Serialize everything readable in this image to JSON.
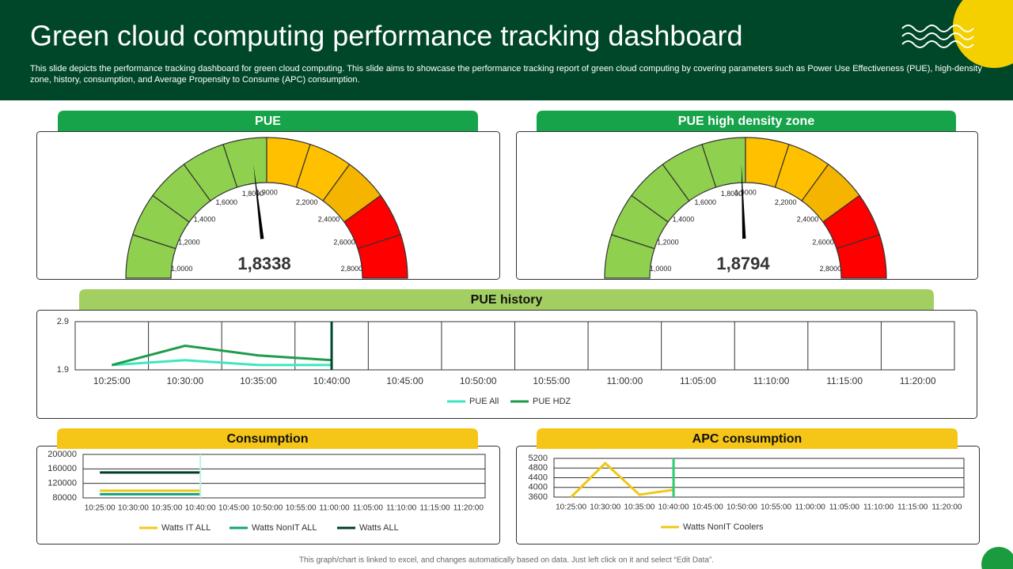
{
  "header": {
    "title": "Green cloud computing performance tracking dashboard",
    "description": "This slide depicts the performance tracking dashboard for green cloud computing. This slide aims to showcase the performance tracking report of green cloud computing by covering parameters such as Power Use Effectiveness (PUE), high-density zone, history, consumption, and Average Propensity to Consume (APC) consumption."
  },
  "chart_data": [
    {
      "type": "gauge",
      "title": "PUE",
      "value": 1.8338,
      "value_label": "1,8338",
      "lim": [
        1.0,
        2.8
      ],
      "ticks": [
        {
          "value": 1.0,
          "label": "1,0000"
        },
        {
          "value": 1.2,
          "label": "1,2000"
        },
        {
          "value": 1.4,
          "label": "1,4000"
        },
        {
          "value": 1.6,
          "label": "1,6000"
        },
        {
          "value": 1.8,
          "label": "1,8000"
        },
        {
          "value": 1.9,
          "label": "1,9000"
        },
        {
          "value": 2.2,
          "label": "2,2000"
        },
        {
          "value": 2.4,
          "label": "2,4000"
        },
        {
          "value": 2.6,
          "label": "2,6000"
        },
        {
          "value": 2.8,
          "label": "2,8000"
        }
      ],
      "band_colors": [
        "#8fd14f",
        "#8fd14f",
        "#8fd14f",
        "#8fd14f",
        "#8fd14f",
        "#ffc000",
        "#ffc000",
        "#f5b400",
        "#ff0000",
        "#ff0000"
      ],
      "title_color": "#16a34a"
    },
    {
      "type": "gauge",
      "title": "PUE high density zone",
      "value": 1.8794,
      "value_label": "1,8794",
      "lim": [
        1.0,
        2.8
      ],
      "ticks": [
        {
          "value": 1.0,
          "label": "1,0000"
        },
        {
          "value": 1.2,
          "label": "1,2000"
        },
        {
          "value": 1.4,
          "label": "1,4000"
        },
        {
          "value": 1.6,
          "label": "1,6000"
        },
        {
          "value": 1.8,
          "label": "1,8000"
        },
        {
          "value": 1.9,
          "label": "1,9000"
        },
        {
          "value": 2.2,
          "label": "2,2000"
        },
        {
          "value": 2.4,
          "label": "2,4000"
        },
        {
          "value": 2.6,
          "label": "2,6000"
        },
        {
          "value": 2.8,
          "label": "2,8000"
        }
      ],
      "band_colors": [
        "#8fd14f",
        "#8fd14f",
        "#8fd14f",
        "#8fd14f",
        "#8fd14f",
        "#ffc000",
        "#ffc000",
        "#f5b400",
        "#ff0000",
        "#ff0000"
      ],
      "title_color": "#16a34a"
    },
    {
      "type": "line",
      "title": "PUE history",
      "title_color": "#a3cf62",
      "categories": [
        "10:25:00",
        "10:30:00",
        "10:35:00",
        "10:40:00",
        "10:45:00",
        "10:50:00",
        "10:55:00",
        "11:00:00",
        "11:05:00",
        "11:10:00",
        "11:15:00",
        "11:20:00"
      ],
      "series": [
        {
          "name": "PUE All",
          "color": "#3ee6c0",
          "values": [
            2.0,
            2.1,
            2.0,
            2.0,
            null,
            null,
            null,
            null,
            null,
            null,
            null,
            null
          ]
        },
        {
          "name": "PUE HDZ",
          "color": "#1e9c4b",
          "values": [
            2.0,
            2.4,
            2.2,
            2.1,
            null,
            null,
            null,
            null,
            null,
            null,
            null,
            null
          ]
        }
      ],
      "ylim": [
        1.9,
        2.9
      ],
      "yticks": [
        1.9,
        2.9
      ]
    },
    {
      "type": "line",
      "title": "Consumption",
      "title_color": "#f5c518",
      "categories": [
        "10:25:00",
        "10:30:00",
        "10:35:00",
        "10:40:00",
        "10:45:00",
        "10:50:00",
        "10:55:00",
        "11:00:00",
        "11:05:00",
        "11:10:00",
        "11:15:00",
        "11:20:00"
      ],
      "series": [
        {
          "name": "Watts IT ALL",
          "color": "#f5c518",
          "values": [
            100000,
            100000,
            100000,
            100000,
            null,
            null,
            null,
            null,
            null,
            null,
            null,
            null
          ]
        },
        {
          "name": "Watts NonIT ALL",
          "color": "#10a37f",
          "values": [
            90000,
            90000,
            90000,
            90000,
            null,
            null,
            null,
            null,
            null,
            null,
            null,
            null
          ]
        },
        {
          "name": "Watts ALL",
          "color": "#003d26",
          "values": [
            150000,
            150000,
            150000,
            150000,
            null,
            null,
            null,
            null,
            null,
            null,
            null,
            null
          ]
        }
      ],
      "ylim": [
        80000,
        200000
      ],
      "yticks": [
        80000,
        120000,
        160000,
        200000
      ]
    },
    {
      "type": "line",
      "title": "APC consumption",
      "title_color": "#f5c518",
      "categories": [
        "10:25:00",
        "10:30:00",
        "10:35:00",
        "10:40:00",
        "10:45:00",
        "10:50:00",
        "10:55:00",
        "11:00:00",
        "11:05:00",
        "11:10:00",
        "11:15:00",
        "11:20:00"
      ],
      "series": [
        {
          "name": "Watts NonIT Coolers",
          "color": "#f0c814",
          "values": [
            3600,
            5000,
            3700,
            3900,
            null,
            null,
            null,
            null,
            null,
            null,
            null,
            null
          ]
        }
      ],
      "ylim": [
        3600,
        5200
      ],
      "yticks": [
        3600,
        4000,
        4400,
        4800,
        5200
      ]
    }
  ],
  "footer": "This graph/chart is linked to excel, and changes automatically based on data. Just left click on it and select “Edit Data”."
}
